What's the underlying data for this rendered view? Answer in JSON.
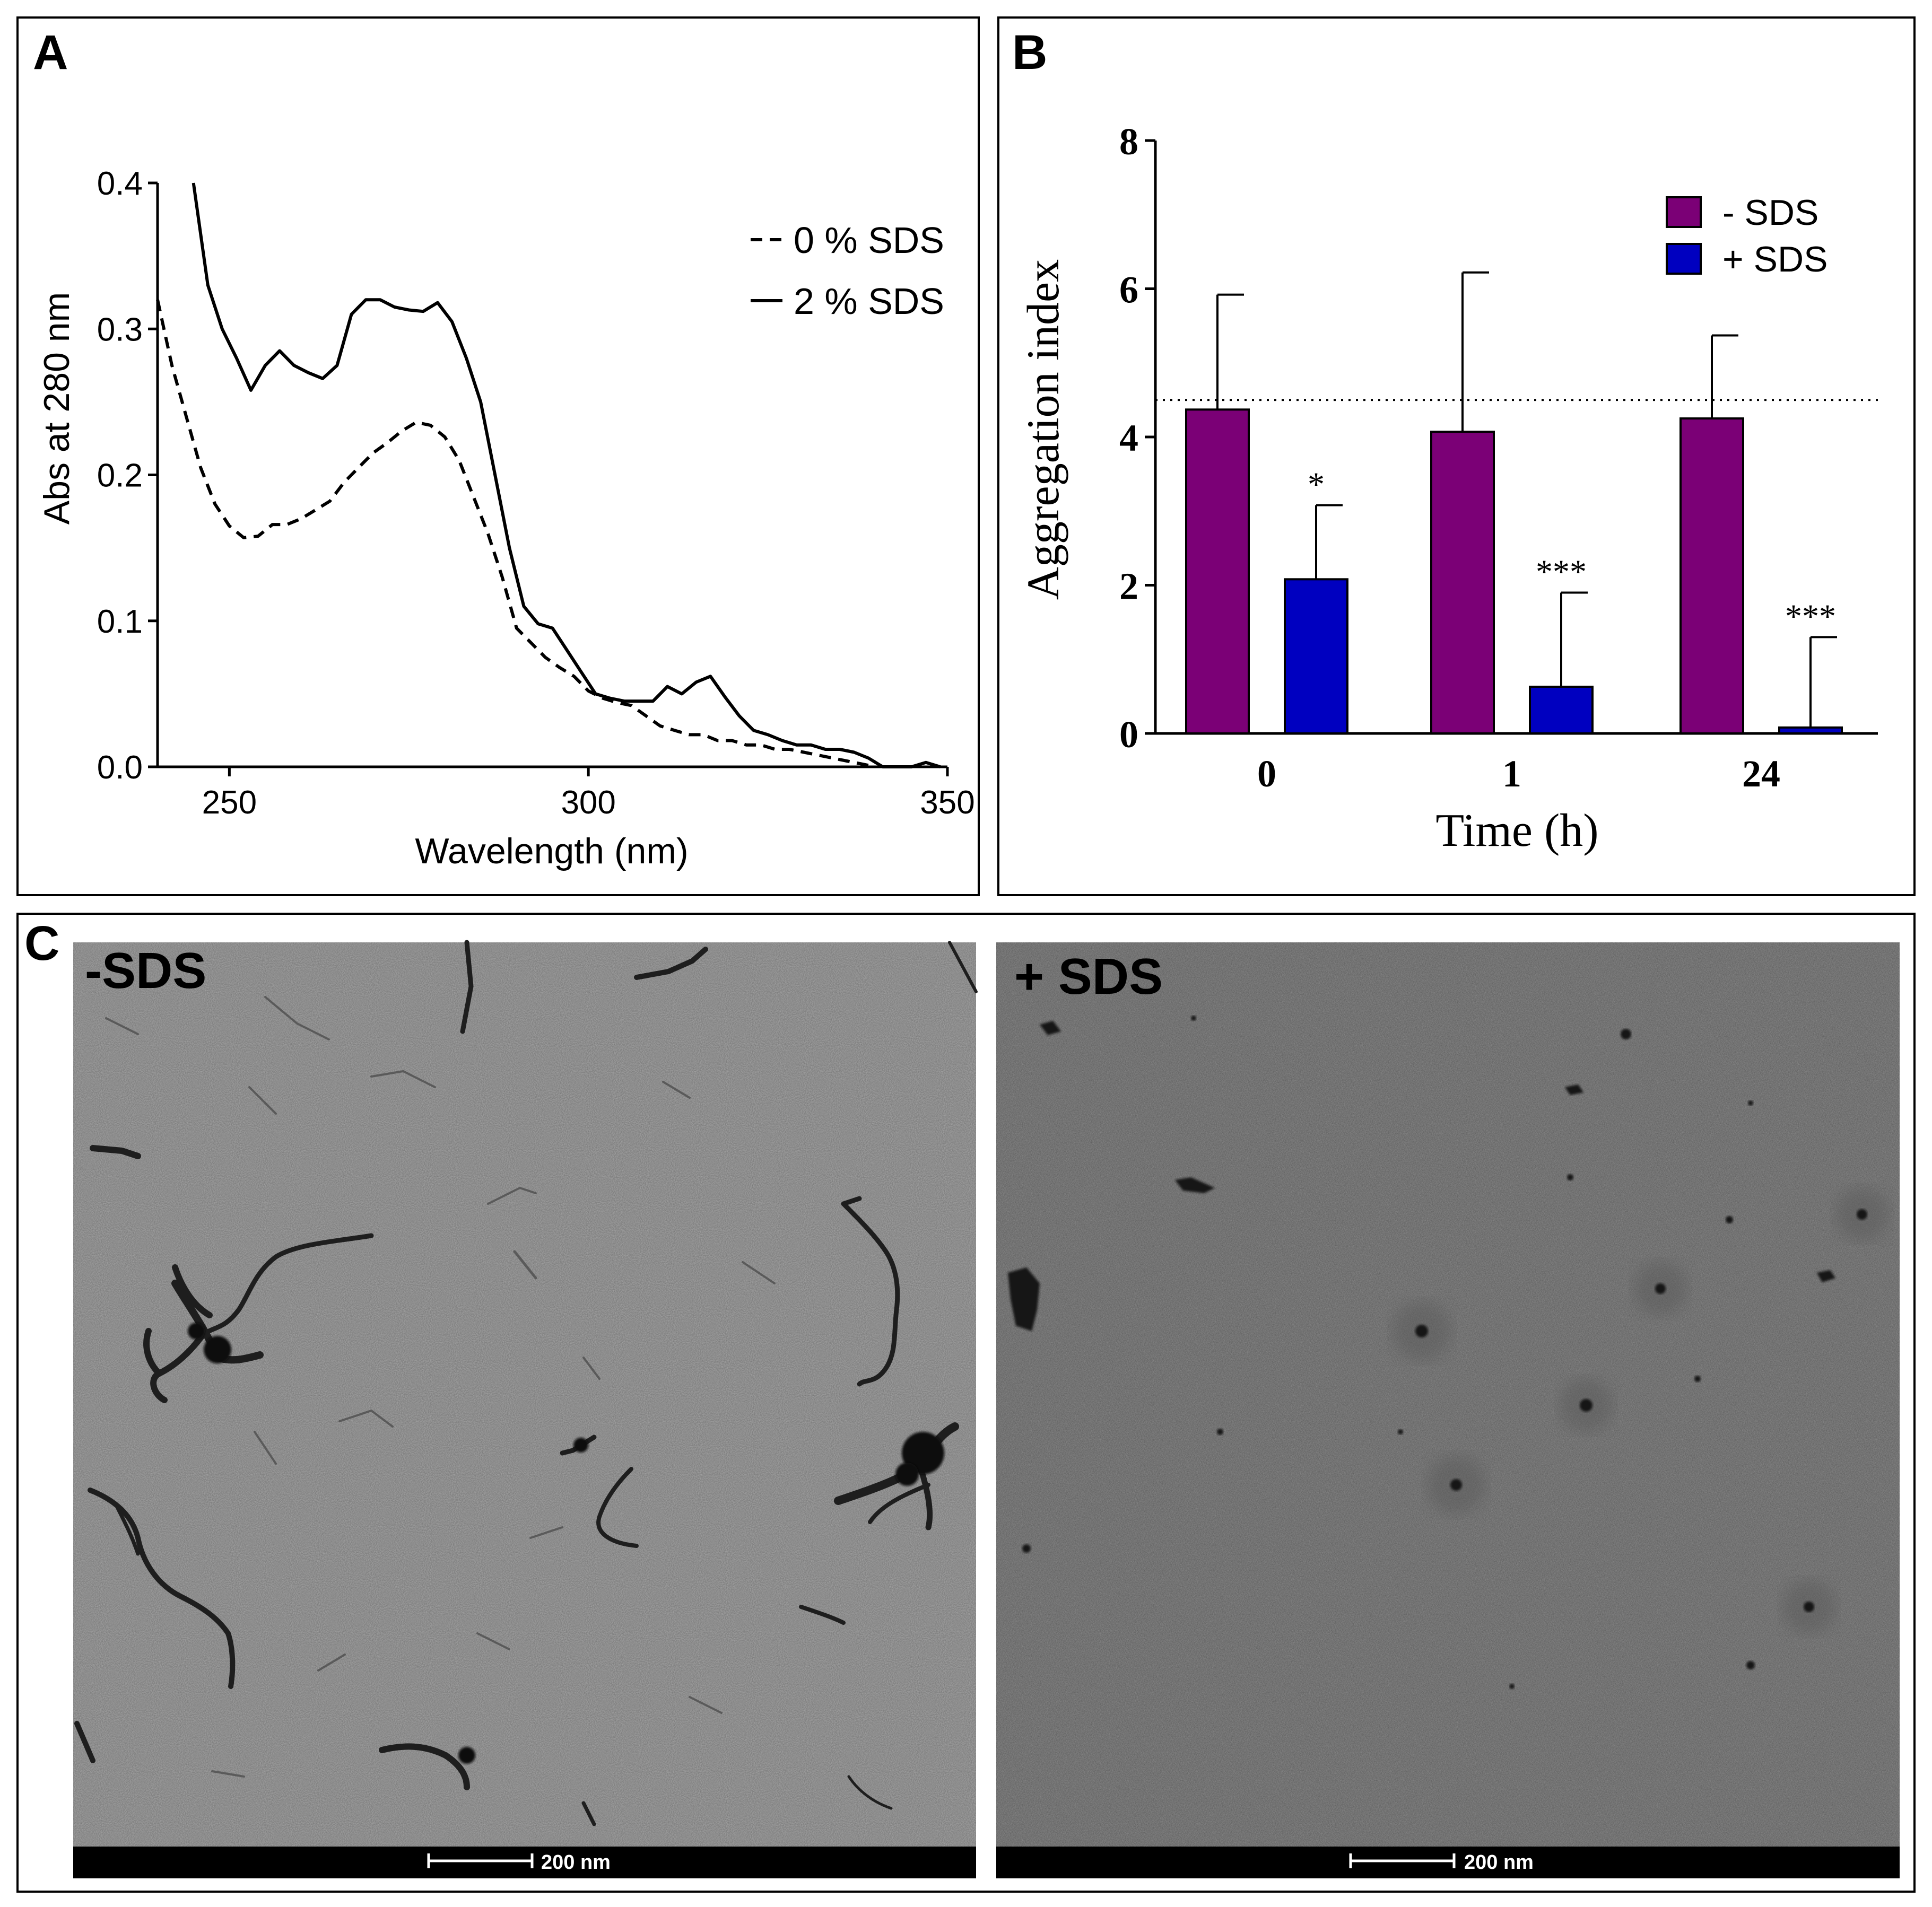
{
  "panels": {
    "a": {
      "letter": "A"
    },
    "b": {
      "letter": "B"
    },
    "c": {
      "letter": "C"
    }
  },
  "chart_data": [
    {
      "panel": "A",
      "type": "line",
      "xlabel": "Wavelength (nm)",
      "ylabel": "Abs at 280 nm",
      "xlim": [
        240,
        350
      ],
      "ylim": [
        0.0,
        0.4
      ],
      "x_ticks": [
        250,
        300,
        350
      ],
      "y_ticks": [
        "0.0",
        "0.1",
        "0.2",
        "0.3",
        "0.4"
      ],
      "grid": false,
      "legend_position": "top-right",
      "series": [
        {
          "name": "0 % SDS",
          "style": "dashed",
          "color": "#000000",
          "x": [
            240,
            242,
            244,
            246,
            248,
            250,
            252,
            254,
            256,
            258,
            260,
            262,
            264,
            266,
            268,
            270,
            272,
            274,
            276,
            278,
            280,
            282,
            284,
            286,
            288,
            290,
            292,
            294,
            296,
            298,
            300,
            302,
            304,
            306,
            308,
            310,
            312,
            314,
            316,
            318,
            320,
            322,
            324,
            326,
            328,
            330,
            332,
            334,
            336,
            338,
            340
          ],
          "y": [
            0.32,
            0.275,
            0.24,
            0.205,
            0.18,
            0.165,
            0.157,
            0.158,
            0.166,
            0.166,
            0.17,
            0.176,
            0.182,
            0.195,
            0.205,
            0.215,
            0.222,
            0.23,
            0.236,
            0.234,
            0.226,
            0.21,
            0.185,
            0.16,
            0.13,
            0.095,
            0.085,
            0.075,
            0.068,
            0.062,
            0.052,
            0.047,
            0.044,
            0.042,
            0.035,
            0.028,
            0.025,
            0.022,
            0.022,
            0.018,
            0.018,
            0.015,
            0.015,
            0.012,
            0.012,
            0.01,
            0.008,
            0.006,
            0.004,
            0.002,
            0.0
          ]
        },
        {
          "name": "2 % SDS",
          "style": "solid",
          "color": "#000000",
          "x": [
            245,
            247,
            249,
            251,
            253,
            255,
            257,
            259,
            261,
            263,
            265,
            267,
            269,
            271,
            273,
            275,
            277,
            279,
            281,
            283,
            285,
            287,
            289,
            291,
            293,
            295,
            297,
            299,
            301,
            303,
            305,
            307,
            309,
            311,
            313,
            315,
            317,
            319,
            321,
            323,
            325,
            327,
            329,
            331,
            333,
            335,
            337,
            339,
            341,
            343,
            345,
            347,
            349
          ],
          "y": [
            0.4,
            0.33,
            0.3,
            0.28,
            0.258,
            0.275,
            0.285,
            0.275,
            0.27,
            0.266,
            0.275,
            0.31,
            0.32,
            0.32,
            0.315,
            0.313,
            0.312,
            0.318,
            0.305,
            0.28,
            0.25,
            0.2,
            0.15,
            0.11,
            0.098,
            0.095,
            0.08,
            0.065,
            0.05,
            0.047,
            0.045,
            0.045,
            0.045,
            0.055,
            0.05,
            0.058,
            0.062,
            0.048,
            0.035,
            0.025,
            0.022,
            0.018,
            0.015,
            0.015,
            0.012,
            0.012,
            0.01,
            0.006,
            0.0,
            0.0,
            0.0,
            0.003,
            0.0
          ]
        }
      ]
    },
    {
      "panel": "B",
      "type": "bar",
      "xlabel": "Time (h)",
      "ylabel": "Aggregation index",
      "categories": [
        "0",
        "1",
        "24"
      ],
      "ylim": [
        0,
        8
      ],
      "y_ticks": [
        "0",
        "2",
        "4",
        "6",
        "8"
      ],
      "reference_line": 4.5,
      "grid": false,
      "legend_position": "top-right",
      "series": [
        {
          "name": "- SDS",
          "color": "#7b0076",
          "values": [
            4.37,
            4.07,
            4.25
          ],
          "error": [
            1.55,
            2.15,
            1.12
          ]
        },
        {
          "name": "+ SDS",
          "color": "#0000c0",
          "values": [
            2.08,
            0.63,
            0.08
          ],
          "error": [
            1.0,
            1.27,
            1.22
          ]
        }
      ],
      "significance": [
        "*",
        "***",
        "***"
      ]
    }
  ],
  "micrographs": [
    {
      "label": "-SDS",
      "scalebar": "200 nm"
    },
    {
      "label": "+ SDS",
      "scalebar": "200 nm"
    }
  ]
}
